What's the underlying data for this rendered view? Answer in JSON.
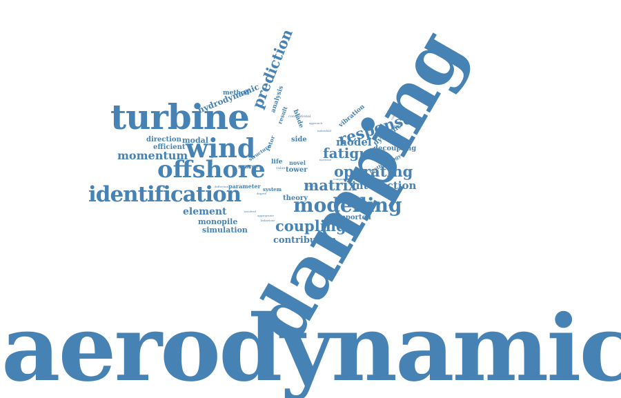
{
  "word_color": "#4682b4",
  "words": [
    {
      "id": "w-aerodynamic",
      "text": "aerodynamic"
    },
    {
      "id": "w-damping",
      "text": "damping"
    },
    {
      "id": "w-turbine",
      "text": "turbine"
    },
    {
      "id": "w-wind",
      "text": "wind"
    },
    {
      "id": "w-offshore",
      "text": "offshore"
    },
    {
      "id": "w-identification",
      "text": "identification"
    },
    {
      "id": "w-modelling",
      "text": "modelling"
    },
    {
      "id": "w-response",
      "text": "response"
    },
    {
      "id": "w-operating",
      "text": "operating"
    },
    {
      "id": "w-matrix",
      "text": "matrix"
    },
    {
      "id": "w-coupling",
      "text": "coupling"
    },
    {
      "id": "w-fatigue",
      "text": "fatigue"
    },
    {
      "id": "w-prediction",
      "text": "prediction"
    },
    {
      "id": "w-momentum",
      "text": "momentum"
    },
    {
      "id": "w-interaction",
      "text": "interaction"
    },
    {
      "id": "w-model",
      "text": "model"
    },
    {
      "id": "w-contribution",
      "text": "contribution"
    },
    {
      "id": "w-element",
      "text": "element"
    },
    {
      "id": "w-hydrodynamic",
      "text": "hydrodynamic"
    },
    {
      "id": "w-modal",
      "text": "modal"
    },
    {
      "id": "w-direction",
      "text": "direction"
    },
    {
      "id": "w-efficient",
      "text": "efficient"
    },
    {
      "id": "w-monopile",
      "text": "monopile"
    },
    {
      "id": "w-simulation",
      "text": "simulation"
    },
    {
      "id": "w-supported",
      "text": "supported"
    },
    {
      "id": "w-decoupling",
      "text": "decoupling"
    },
    {
      "id": "w-dynamic",
      "text": "dynamic"
    },
    {
      "id": "w-side",
      "text": "side"
    },
    {
      "id": "w-tower",
      "text": "tower"
    },
    {
      "id": "w-theory",
      "text": "theory"
    },
    {
      "id": "w-method",
      "text": "method"
    },
    {
      "id": "w-vibration",
      "text": "vibration"
    },
    {
      "id": "w-blade",
      "text": "blade"
    },
    {
      "id": "w-analysis",
      "text": "analysis"
    },
    {
      "id": "w-result",
      "text": "result"
    },
    {
      "id": "w-rotor",
      "text": "rotor"
    },
    {
      "id": "w-structure",
      "text": "structure"
    },
    {
      "id": "w-life",
      "text": "life"
    },
    {
      "id": "w-novel",
      "text": "novel"
    },
    {
      "id": "w-source",
      "text": "source"
    },
    {
      "id": "w-parameter",
      "text": "parameter"
    },
    {
      "id": "w-system",
      "text": "system"
    },
    {
      "id": "w-methodology",
      "text": "methodology"
    },
    {
      "id": "w-conventional",
      "text": "conventional"
    },
    {
      "id": "w-value",
      "text": "value"
    },
    {
      "id": "w-package",
      "text": "package"
    },
    {
      "id": "w-appropriate",
      "text": "appropriate"
    },
    {
      "id": "w-behaviour",
      "text": "behaviour"
    },
    {
      "id": "w-degree",
      "text": "degree"
    },
    {
      "id": "w-project",
      "text": "project"
    },
    {
      "id": "w-component",
      "text": "component"
    },
    {
      "id": "w-increase",
      "text": "increase"
    },
    {
      "id": "w-individual",
      "text": "individual"
    },
    {
      "id": "w-deflection",
      "text": "deflection"
    },
    {
      "id": "w-approach",
      "text": "approach"
    },
    {
      "id": "w-considerable",
      "text": "considerable"
    },
    {
      "id": "w-involved",
      "text": "involved"
    }
  ]
}
